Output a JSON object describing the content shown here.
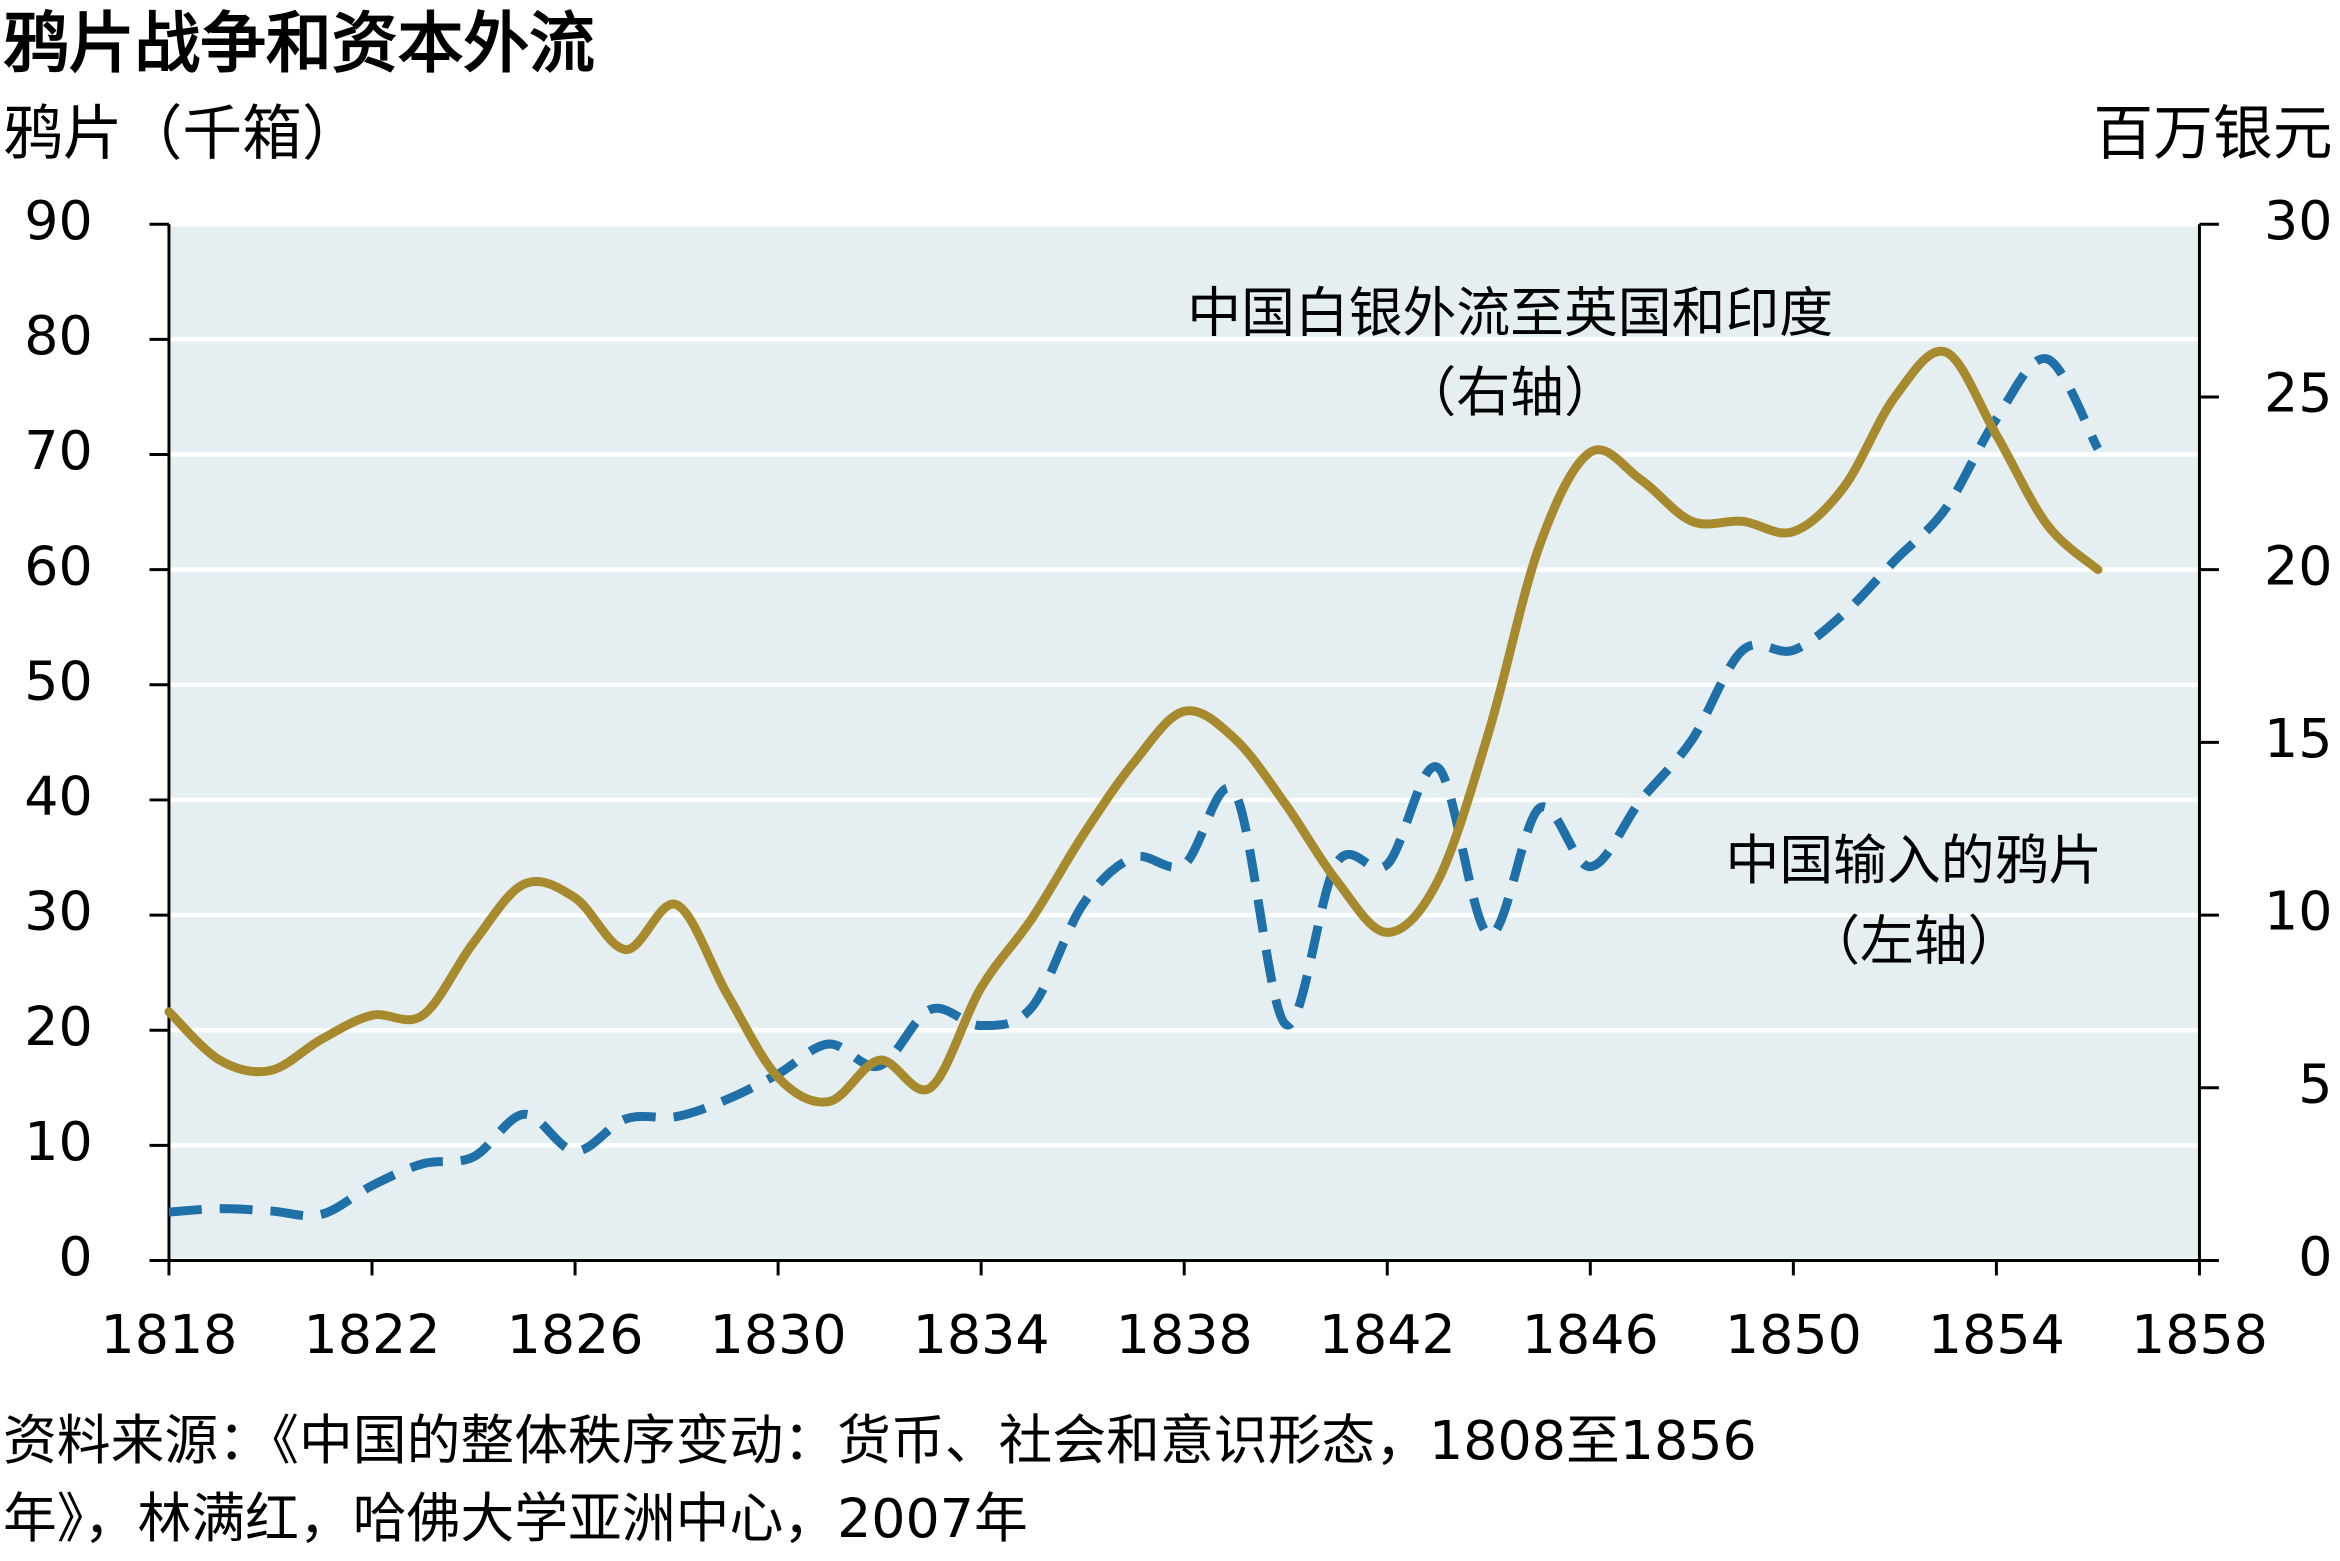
{
  "chart_data": {
    "type": "line",
    "title": "鸦片战争和资本外流",
    "y_label": "鸦片（千箱）",
    "y2_label": "百万银元",
    "x": [
      1818,
      1819,
      1820,
      1821,
      1822,
      1823,
      1824,
      1825,
      1826,
      1827,
      1828,
      1829,
      1830,
      1831,
      1832,
      1833,
      1834,
      1835,
      1836,
      1837,
      1838,
      1839,
      1840,
      1841,
      1842,
      1843,
      1844,
      1845,
      1846,
      1847,
      1848,
      1849,
      1850,
      1851,
      1852,
      1853,
      1854,
      1855,
      1856
    ],
    "series": [
      {
        "name": "中国输入的鸦片",
        "color": "#1f6fa8",
        "dashed": true,
        "values": [
          4.2,
          4.5,
          4.3,
          4,
          6.5,
          8.4,
          9,
          12.7,
          9.5,
          12.3,
          12.5,
          14,
          16.2,
          18.8,
          16.9,
          21.8,
          20.4,
          22,
          30.9,
          35,
          34.4,
          40.6,
          20.5,
          34.5,
          34.4,
          42.8,
          28.3,
          39.3,
          34.2,
          40,
          45.2,
          53,
          53,
          56.2,
          60.8,
          65.3,
          73.1,
          78.3,
          70.5
        ]
      },
      {
        "name": "中国白银外流至英国和印度",
        "color": "#a88a2e",
        "axis": "y2",
        "values": [
          7.2,
          5.8,
          5.5,
          6.4,
          7.1,
          7.1,
          9.2,
          10.9,
          10.5,
          9,
          10.3,
          7.7,
          5.3,
          4.6,
          5.8,
          5,
          7.9,
          9.9,
          12.3,
          14.4,
          15.9,
          15.1,
          13.2,
          11,
          9.5,
          11,
          15.3,
          20.7,
          23.4,
          22.6,
          21.4,
          21.4,
          21.1,
          22.4,
          25,
          26.3,
          23.9,
          21.3,
          20
        ]
      }
    ],
    "annotations": [
      "（左轴）",
      "（右轴）"
    ],
    "xlim": [
      1818,
      1858
    ],
    "xticks": [
      1818,
      1822,
      1826,
      1830,
      1834,
      1838,
      1842,
      1846,
      1850,
      1854,
      1858
    ],
    "ylim": [
      0,
      90
    ],
    "yticks": [
      0,
      10,
      20,
      30,
      40,
      50,
      60,
      70,
      80,
      90
    ],
    "y2lim": [
      0,
      30
    ],
    "y2ticks": [
      0,
      5,
      10,
      15,
      20,
      25,
      30
    ],
    "grid": true,
    "source": [
      "资料来源：《中国的整体秩序变动：货币、社会和意识形态，1808至1856",
      "年》，林满红，哈佛大学亚洲中心，2007年"
    ]
  }
}
